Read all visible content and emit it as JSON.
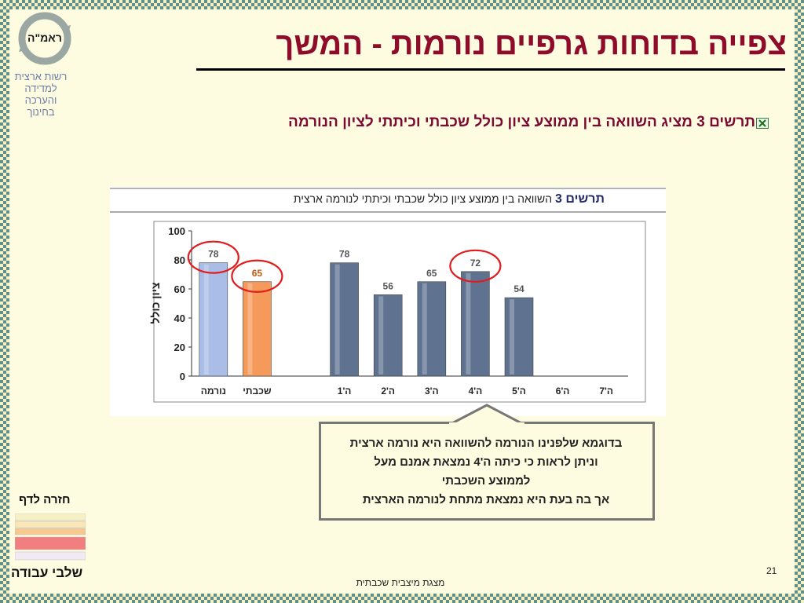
{
  "slide": {
    "title": "צפייה בדוחות גרפיים נורמות - המשך",
    "logo_text": "ראמ\"ה",
    "org_lines": [
      "רשות ארצית",
      "למדידה",
      "והערכה",
      "בחינוך"
    ],
    "bullet_text": "תרשים 3 מציג השוואה בין ממוצע ציון כולל שכבתי וכיתתי לציון הנורמה",
    "nav_back": "חזרה  לדף",
    "nav_steps": "שלבי עבודה",
    "page_number": "21",
    "footer": "מצגת מיצבית שכבתית"
  },
  "callout": {
    "lines": [
      "בדוגמא שלפנינו הנורמה להשוואה היא נורמה ארצית",
      "וניתן לראות כי כיתה ה'4 נמצאת אמנם מעל",
      "לממוצע השכבתי",
      "אך בה בעת היא נמצאת מתחת לנורמה הארצית"
    ]
  },
  "chart_data": {
    "type": "bar",
    "title_bold": "תרשים 3",
    "title": "השוואה בין ממוצע ציון כולל שכבתי וכיתתי לנורמה ארצית",
    "ylabel": "ציון כולל",
    "ylim": [
      0,
      100
    ],
    "yticks": [
      0,
      20,
      40,
      60,
      80,
      100
    ],
    "categories": [
      "נורמה",
      "שכבתי",
      "",
      "ה'1",
      "ה'2",
      "ה'3",
      "ה'4",
      "ה'5",
      "ה'6",
      "ה'7"
    ],
    "values": [
      78,
      65,
      null,
      78,
      56,
      65,
      72,
      54,
      null,
      null
    ],
    "colors": {
      "norm": "#a9bde6",
      "layer": "#f59a5a",
      "class": "#5f7390",
      "highlight_circle": "#e01c1c"
    },
    "highlighted": [
      "נורמה",
      "שכבתי",
      "ה'4"
    ]
  }
}
